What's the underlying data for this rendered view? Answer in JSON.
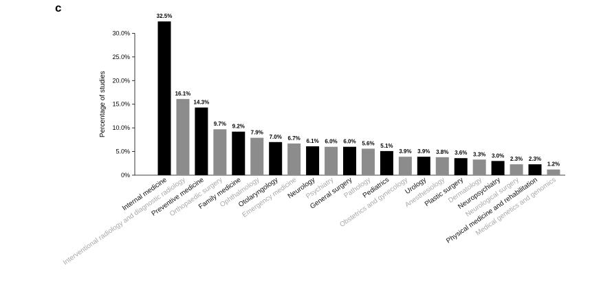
{
  "panel_label": "c",
  "chart_data": {
    "type": "bar",
    "title": "",
    "xlabel": "",
    "ylabel": "Percentage of studies",
    "ylim": [
      0,
      35
    ],
    "yticks": [
      0,
      5,
      10,
      15,
      20,
      25,
      30
    ],
    "ytick_labels": [
      "0%",
      "5.0%",
      "10.0%",
      "15.0%",
      "20.0%",
      "25.0%",
      "30.0%"
    ],
    "categories": [
      "Internal medicine",
      "Interventional radiology and diagnostic radiology",
      "Preventive medicine",
      "Orthopaedic surgery",
      "Family medicine",
      "Ophthalmology",
      "Otolaryngology",
      "Emergency medicine",
      "Neurology",
      "Psychiatry",
      "General surgery",
      "Pathology",
      "Pediatrics",
      "Obstetrics and gynecology",
      "Urology",
      "Anesthesiology",
      "Plastic surgery",
      "Dermatology",
      "Neuropsychiatry",
      "Neurological surgery",
      "Physical medicine and rehabilitation",
      "Medical genetics and genomics"
    ],
    "values": [
      32.5,
      16.1,
      14.3,
      9.7,
      9.2,
      7.9,
      7.0,
      6.7,
      6.1,
      6.0,
      6.0,
      5.6,
      5.1,
      3.9,
      3.9,
      3.8,
      3.6,
      3.3,
      3.0,
      2.3,
      2.3,
      1.2
    ],
    "value_labels": [
      "32.5%",
      "16.1%",
      "14.3%",
      "9.7%",
      "9.2%",
      "7.9%",
      "7.0%",
      "6.7%",
      "6.1%",
      "6.0%",
      "6.0%",
      "5.6%",
      "5.1%",
      "3.9%",
      "3.9%",
      "3.8%",
      "3.6%",
      "3.3%",
      "3.0%",
      "2.3%",
      "2.3%",
      "1.2%"
    ],
    "colors": {
      "dark": "#000000",
      "grey": "#8c8c8c",
      "grey_label": "#a8a8a8"
    },
    "grid": false,
    "legend": "none"
  }
}
